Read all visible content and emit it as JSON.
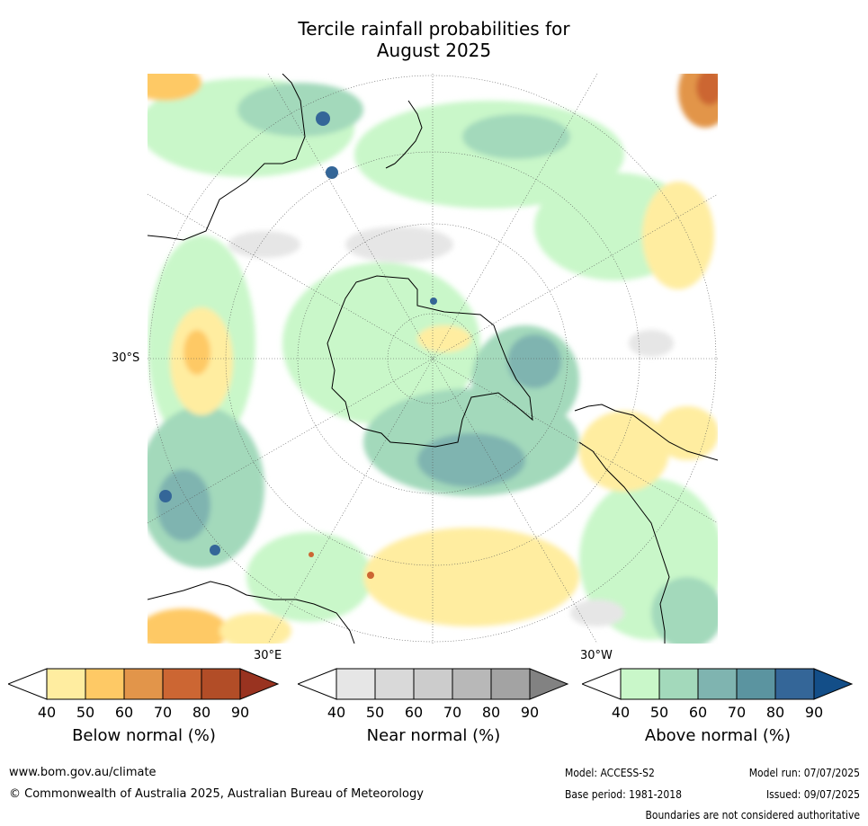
{
  "title_line1": "Tercile rainfall probabilities for",
  "title_line2": "August 2025",
  "map": {
    "lat_label": "30°S",
    "lon_label_left": "30°E",
    "lon_label_right": "30°W"
  },
  "colorbars": [
    {
      "id": "below",
      "title": "Below normal (%)",
      "ticks": [
        "40",
        "50",
        "60",
        "70",
        "80",
        "90"
      ],
      "colors": [
        "#ffeda0",
        "#fec965",
        "#e2954a",
        "#cc6633",
        "#b24d27",
        "#993320"
      ]
    },
    {
      "id": "near",
      "title": "Near normal (%)",
      "ticks": [
        "40",
        "50",
        "60",
        "70",
        "80",
        "90"
      ],
      "colors": [
        "#e6e6e6",
        "#d9d9d9",
        "#cccccc",
        "#b8b8b8",
        "#a3a3a3",
        "#828282"
      ]
    },
    {
      "id": "above",
      "title": "Above normal (%)",
      "ticks": [
        "40",
        "50",
        "60",
        "70",
        "80",
        "90"
      ],
      "colors": [
        "#c9f7c9",
        "#a3d9bb",
        "#7fb4b0",
        "#5b94a0",
        "#346698",
        "#134e88"
      ]
    }
  ],
  "footer": {
    "url": "www.bom.gov.au/climate",
    "copyright": "© Commonwealth of Australia 2025, Australian Bureau of Meteorology",
    "model": "Model: ACCESS-S2",
    "model_run": "Model run: 07/07/2025",
    "base_period": "Base period: 1981-2018",
    "issued": "Issued: 09/07/2025",
    "disclaimer": "Boundaries are not considered authoritative"
  }
}
